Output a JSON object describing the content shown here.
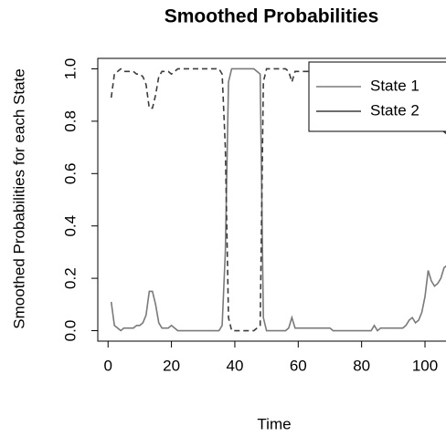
{
  "chart_data": {
    "type": "line",
    "title": "Smoothed Probabilities",
    "x_label": "Time",
    "y_label": "Smoothed Probabilities for each State",
    "x": [
      1,
      2,
      3,
      4,
      5,
      6,
      7,
      8,
      9,
      10,
      11,
      12,
      13,
      14,
      15,
      16,
      17,
      18,
      19,
      20,
      21,
      22,
      23,
      24,
      25,
      26,
      27,
      28,
      29,
      30,
      31,
      32,
      33,
      34,
      35,
      36,
      37,
      38,
      39,
      40,
      41,
      42,
      43,
      44,
      45,
      46,
      47,
      48,
      49,
      50,
      51,
      52,
      53,
      54,
      55,
      56,
      57,
      58,
      59,
      60,
      61,
      62,
      63,
      64,
      65,
      66,
      67,
      68,
      69,
      70,
      71,
      72,
      73,
      74,
      75,
      76,
      77,
      78,
      79,
      80,
      81,
      82,
      83,
      84,
      85,
      86,
      87,
      88,
      89,
      90,
      91,
      92,
      93,
      94,
      95,
      96,
      97,
      98,
      99,
      100,
      101,
      102,
      103,
      104,
      105,
      106,
      107
    ],
    "series": [
      {
        "name": "State 1",
        "color": "#7a7a7a",
        "dashed": false,
        "values": [
          0.11,
          0.02,
          0.01,
          0,
          0.01,
          0.01,
          0.01,
          0.01,
          0.02,
          0.02,
          0.03,
          0.06,
          0.15,
          0.15,
          0.1,
          0.03,
          0.01,
          0.01,
          0.01,
          0.02,
          0.01,
          0,
          0,
          0,
          0,
          0,
          0,
          0,
          0,
          0,
          0,
          0,
          0,
          0,
          0,
          0.02,
          0.3,
          0.95,
          1,
          1,
          1,
          1,
          1,
          1,
          1,
          1,
          0.99,
          0.98,
          0.05,
          0,
          0,
          0,
          0,
          0,
          0,
          0,
          0.01,
          0.05,
          0.01,
          0.01,
          0.01,
          0.01,
          0.01,
          0.01,
          0.01,
          0.01,
          0.01,
          0.01,
          0.01,
          0.01,
          0,
          0,
          0,
          0,
          0,
          0,
          0,
          0,
          0,
          0,
          0,
          0,
          0,
          0.02,
          0,
          0.01,
          0.01,
          0.01,
          0.01,
          0.01,
          0.01,
          0.01,
          0.01,
          0.02,
          0.04,
          0.05,
          0.03,
          0.04,
          0.07,
          0.13,
          0.23,
          0.19,
          0.17,
          0.18,
          0.2,
          0.24,
          0.25
        ]
      },
      {
        "name": "State 2",
        "color": "#3c3c3c",
        "dashed": true,
        "values": [
          0.89,
          0.98,
          0.99,
          1,
          0.99,
          0.99,
          0.99,
          0.99,
          0.98,
          0.98,
          0.97,
          0.94,
          0.85,
          0.85,
          0.9,
          0.97,
          0.99,
          0.99,
          0.99,
          0.98,
          0.99,
          1,
          1,
          1,
          1,
          1,
          1,
          1,
          1,
          1,
          1,
          1,
          1,
          1,
          1,
          0.98,
          0.7,
          0.05,
          0,
          0,
          0,
          0,
          0,
          0,
          0,
          0,
          0.01,
          0.02,
          0.95,
          1,
          1,
          1,
          1,
          1,
          1,
          1,
          0.99,
          0.95,
          0.99,
          0.99,
          0.99,
          0.99,
          0.99,
          0.99,
          0.99,
          0.99,
          0.99,
          0.99,
          0.99,
          0.99,
          1,
          1,
          1,
          1,
          1,
          1,
          1,
          1,
          1,
          1,
          1,
          1,
          1,
          0.98,
          1,
          0.99,
          0.99,
          0.99,
          0.99,
          0.99,
          0.99,
          0.99,
          0.99,
          0.98,
          0.96,
          0.95,
          0.97,
          0.96,
          0.93,
          0.87,
          0.77,
          0.81,
          0.83,
          0.82,
          0.8,
          0.76,
          0.75
        ]
      }
    ],
    "xlim": [
      -3.24,
      111.24
    ],
    "ylim": [
      -0.04,
      1.04
    ],
    "xticks": [
      0,
      20,
      40,
      60,
      80,
      100
    ],
    "yticks": [
      {
        "value": 0,
        "label": "0.0"
      },
      0.2,
      0.4,
      0.6,
      0.8,
      {
        "value": 1,
        "label": "1.0"
      }
    ],
    "legend": "top-right"
  }
}
